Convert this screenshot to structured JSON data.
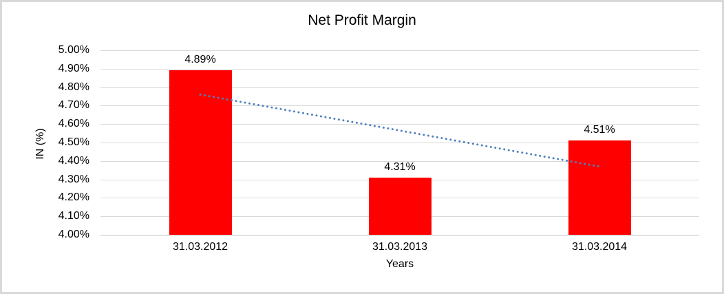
{
  "chart_data": {
    "type": "bar",
    "title": "Net Profit Margin",
    "categories": [
      "31.03.2012",
      "31.03.2013",
      "31.03.2014"
    ],
    "values": [
      4.89,
      4.31,
      4.51
    ],
    "data_labels": [
      "4.89%",
      "4.31%",
      "4.51%"
    ],
    "xlabel": "Years",
    "ylabel": "IN (%)",
    "ylim": [
      4.0,
      5.0
    ],
    "ytick_step": 0.1,
    "ytick_labels": [
      "5.00%",
      "4.90%",
      "4.80%",
      "4.70%",
      "4.60%",
      "4.50%",
      "4.40%",
      "4.30%",
      "4.20%",
      "4.10%",
      "4.00%"
    ],
    "grid": true,
    "legend": "none",
    "bar_color": "#ff0000",
    "gridline_color": "#d9d9d9",
    "axis_line_color": "#bfbfbf",
    "trendline": {
      "type": "linear",
      "style": "dotted",
      "color": "#4f81bd",
      "start_value": 4.76,
      "end_value": 4.37
    }
  }
}
